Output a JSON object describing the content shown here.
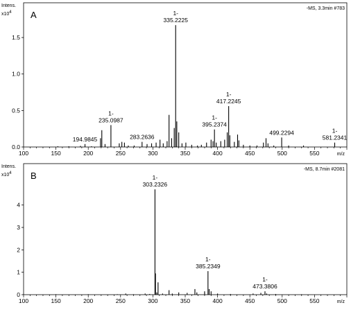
{
  "chart_data": [
    {
      "type": "bar",
      "panel_label": "A",
      "y_title": "Intens.",
      "y_multiplier": "x10",
      "y_multiplier_exp": "4",
      "header": "-MS, 3.3min #783",
      "xlabel": "m/z",
      "xlim": [
        100,
        600
      ],
      "ylim": [
        0,
        1.9
      ],
      "x_ticks": [
        100,
        150,
        200,
        250,
        300,
        350,
        400,
        450,
        500,
        550
      ],
      "y_ticks": [
        0.0,
        0.5,
        1.0,
        1.5
      ],
      "y_tick_labels": [
        "0.0",
        "0.5",
        "1.0",
        "1.5"
      ],
      "peaks": [
        {
          "x": 153,
          "y": 0.01
        },
        {
          "x": 170,
          "y": 0.01
        },
        {
          "x": 188,
          "y": 0.015
        },
        {
          "x": 194.9845,
          "y": 0.04,
          "label": "194.9845"
        },
        {
          "x": 205,
          "y": 0.01
        },
        {
          "x": 219,
          "y": 0.12
        },
        {
          "x": 221,
          "y": 0.23
        },
        {
          "x": 226,
          "y": 0.04
        },
        {
          "x": 235.0987,
          "y": 0.3,
          "label": "1-\n235.0987"
        },
        {
          "x": 248,
          "y": 0.05
        },
        {
          "x": 252,
          "y": 0.07
        },
        {
          "x": 256,
          "y": 0.06
        },
        {
          "x": 262,
          "y": 0.02
        },
        {
          "x": 271,
          "y": 0.02
        },
        {
          "x": 283.2636,
          "y": 0.07,
          "label": "283.2636"
        },
        {
          "x": 291,
          "y": 0.04
        },
        {
          "x": 298,
          "y": 0.05
        },
        {
          "x": 305,
          "y": 0.06
        },
        {
          "x": 311,
          "y": 0.1
        },
        {
          "x": 316,
          "y": 0.05
        },
        {
          "x": 322,
          "y": 0.08
        },
        {
          "x": 325,
          "y": 0.44
        },
        {
          "x": 329,
          "y": 0.12
        },
        {
          "x": 333,
          "y": 0.26
        },
        {
          "x": 335.2225,
          "y": 1.67,
          "label": "1-\n335.2225"
        },
        {
          "x": 337,
          "y": 0.35
        },
        {
          "x": 340,
          "y": 0.2
        },
        {
          "x": 345,
          "y": 0.05
        },
        {
          "x": 351,
          "y": 0.06
        },
        {
          "x": 360,
          "y": 0.03
        },
        {
          "x": 369,
          "y": 0.02
        },
        {
          "x": 375,
          "y": 0.03
        },
        {
          "x": 383,
          "y": 0.06
        },
        {
          "x": 390,
          "y": 0.1
        },
        {
          "x": 393,
          "y": 0.08
        },
        {
          "x": 395.2374,
          "y": 0.24,
          "label": "1-\n395.2374"
        },
        {
          "x": 398,
          "y": 0.06
        },
        {
          "x": 405,
          "y": 0.08
        },
        {
          "x": 411,
          "y": 0.1
        },
        {
          "x": 415,
          "y": 0.2
        },
        {
          "x": 417.2245,
          "y": 0.56,
          "label": "1-\n417.2245"
        },
        {
          "x": 419,
          "y": 0.16
        },
        {
          "x": 426,
          "y": 0.07
        },
        {
          "x": 431,
          "y": 0.17
        },
        {
          "x": 433,
          "y": 0.09
        },
        {
          "x": 440,
          "y": 0.03
        },
        {
          "x": 450,
          "y": 0.02
        },
        {
          "x": 461,
          "y": 0.02
        },
        {
          "x": 471,
          "y": 0.06
        },
        {
          "x": 475,
          "y": 0.12
        },
        {
          "x": 478,
          "y": 0.05
        },
        {
          "x": 487,
          "y": 0.02
        },
        {
          "x": 499.2294,
          "y": 0.13,
          "label": "499.2294"
        },
        {
          "x": 510,
          "y": 0.02
        },
        {
          "x": 533,
          "y": 0.02
        },
        {
          "x": 581.2341,
          "y": 0.06,
          "label": "1-\n581.2341"
        }
      ]
    },
    {
      "type": "bar",
      "panel_label": "B",
      "y_title": "Intens.",
      "y_multiplier": "x10",
      "y_multiplier_exp": "4",
      "header": "-MS, 8.7min #2081",
      "xlabel": "m/z",
      "xlim": [
        100,
        600
      ],
      "ylim": [
        0,
        5.6
      ],
      "x_ticks": [
        100,
        150,
        200,
        250,
        300,
        350,
        400,
        450,
        500,
        550
      ],
      "y_ticks": [
        0,
        1,
        2,
        3,
        4
      ],
      "y_tick_labels": [
        "0",
        "1",
        "2",
        "3",
        "4"
      ],
      "peaks": [
        {
          "x": 150,
          "y": 0.02
        },
        {
          "x": 200,
          "y": 0.02
        },
        {
          "x": 245,
          "y": 0.02
        },
        {
          "x": 258,
          "y": 0.05
        },
        {
          "x": 270,
          "y": 0.02
        },
        {
          "x": 288,
          "y": 0.05
        },
        {
          "x": 295,
          "y": 0.03
        },
        {
          "x": 303.2326,
          "y": 4.7,
          "label": "1-\n303.2326"
        },
        {
          "x": 304,
          "y": 0.95
        },
        {
          "x": 306,
          "y": 0.1
        },
        {
          "x": 308,
          "y": 0.55
        },
        {
          "x": 315,
          "y": 0.05
        },
        {
          "x": 325,
          "y": 0.2
        },
        {
          "x": 330,
          "y": 0.05
        },
        {
          "x": 340,
          "y": 0.1
        },
        {
          "x": 353,
          "y": 0.08
        },
        {
          "x": 365,
          "y": 0.25
        },
        {
          "x": 368,
          "y": 0.1
        },
        {
          "x": 380,
          "y": 0.15
        },
        {
          "x": 385.2349,
          "y": 1.05,
          "label": "1-\n385.2349"
        },
        {
          "x": 387,
          "y": 0.25
        },
        {
          "x": 390,
          "y": 0.15
        },
        {
          "x": 400,
          "y": 0.05
        },
        {
          "x": 420,
          "y": 0.03
        },
        {
          "x": 455,
          "y": 0.05
        },
        {
          "x": 467,
          "y": 0.08
        },
        {
          "x": 473.3806,
          "y": 0.15,
          "label": "1-\n473.3806"
        },
        {
          "x": 476,
          "y": 0.05
        },
        {
          "x": 490,
          "y": 0.03
        },
        {
          "x": 530,
          "y": 0.02
        }
      ]
    }
  ]
}
